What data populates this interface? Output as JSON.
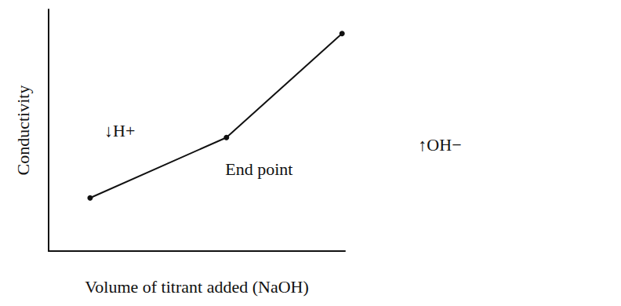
{
  "chart_data": {
    "type": "line",
    "x_label": "Volume of titrant added (NaOH)",
    "y_label": "Conductivity",
    "x": [
      1.4,
      6.0,
      9.9
    ],
    "values": [
      2.2,
      4.7,
      9.0
    ],
    "color": "#111111",
    "marker": "circle",
    "xlim": [
      0,
      10
    ],
    "ylim": [
      0,
      10
    ],
    "tick_labels": false,
    "grid": false,
    "annotations": [
      {
        "text": "↓H+",
        "x": 2.4,
        "y": 5.0
      },
      {
        "text": "End point",
        "x": 7.1,
        "y": 3.4
      },
      {
        "text": "↑OH−",
        "x": 13.2,
        "y": 4.4
      }
    ]
  }
}
